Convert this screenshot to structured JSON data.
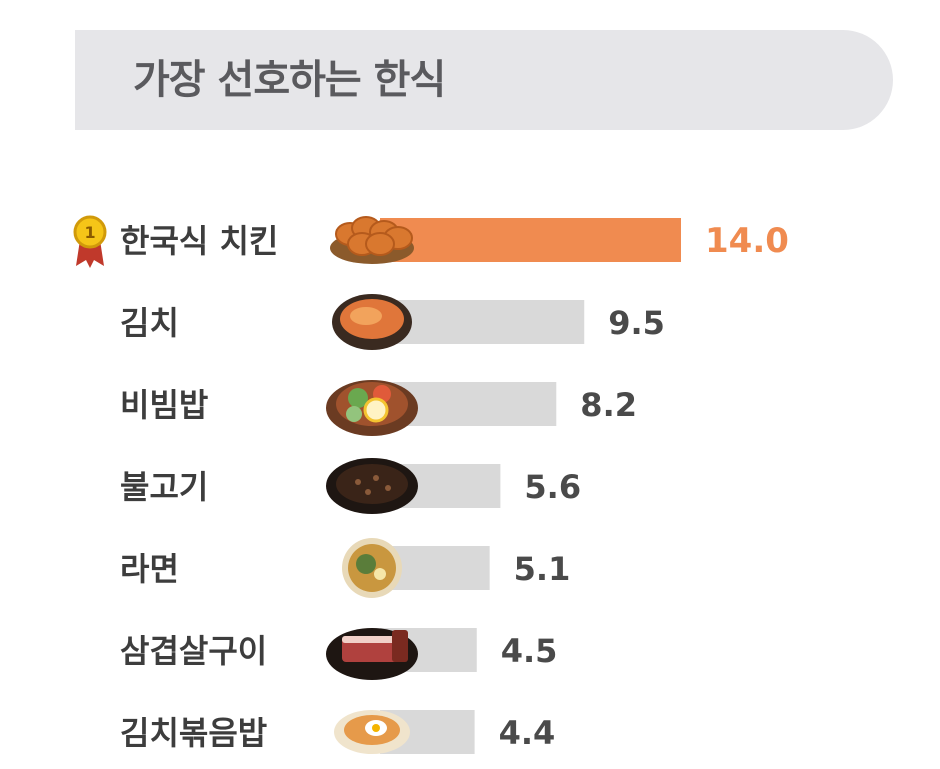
{
  "title": "가장 선호하는 한식",
  "colors": {
    "highlight": "#f08b50",
    "bar": "#d9d9d9",
    "title_bg": "#e6e6e9",
    "label": "#3d3d3d"
  },
  "rank_badge": {
    "number": "1"
  },
  "chart_data": {
    "type": "bar",
    "orientation": "horizontal",
    "title": "가장 선호하는 한식",
    "categories": [
      "한국식 치킨",
      "김치",
      "비빔밥",
      "불고기",
      "라면",
      "삼겹살구이",
      "김치볶음밥"
    ],
    "values": [
      14.0,
      9.5,
      8.2,
      5.6,
      5.1,
      4.5,
      4.4
    ],
    "value_labels": [
      "14.0",
      "9.5",
      "8.2",
      "5.6",
      "5.1",
      "4.5",
      "4.4"
    ],
    "icons": [
      "fried-chicken-icon",
      "kimchi-icon",
      "bibimbap-icon",
      "bulgogi-icon",
      "ramen-icon",
      "samgyeopsal-icon",
      "kimchi-fried-rice-icon"
    ],
    "highlight_index": 0,
    "xlabel": "",
    "ylabel": "",
    "legend": "none",
    "grid": false
  }
}
